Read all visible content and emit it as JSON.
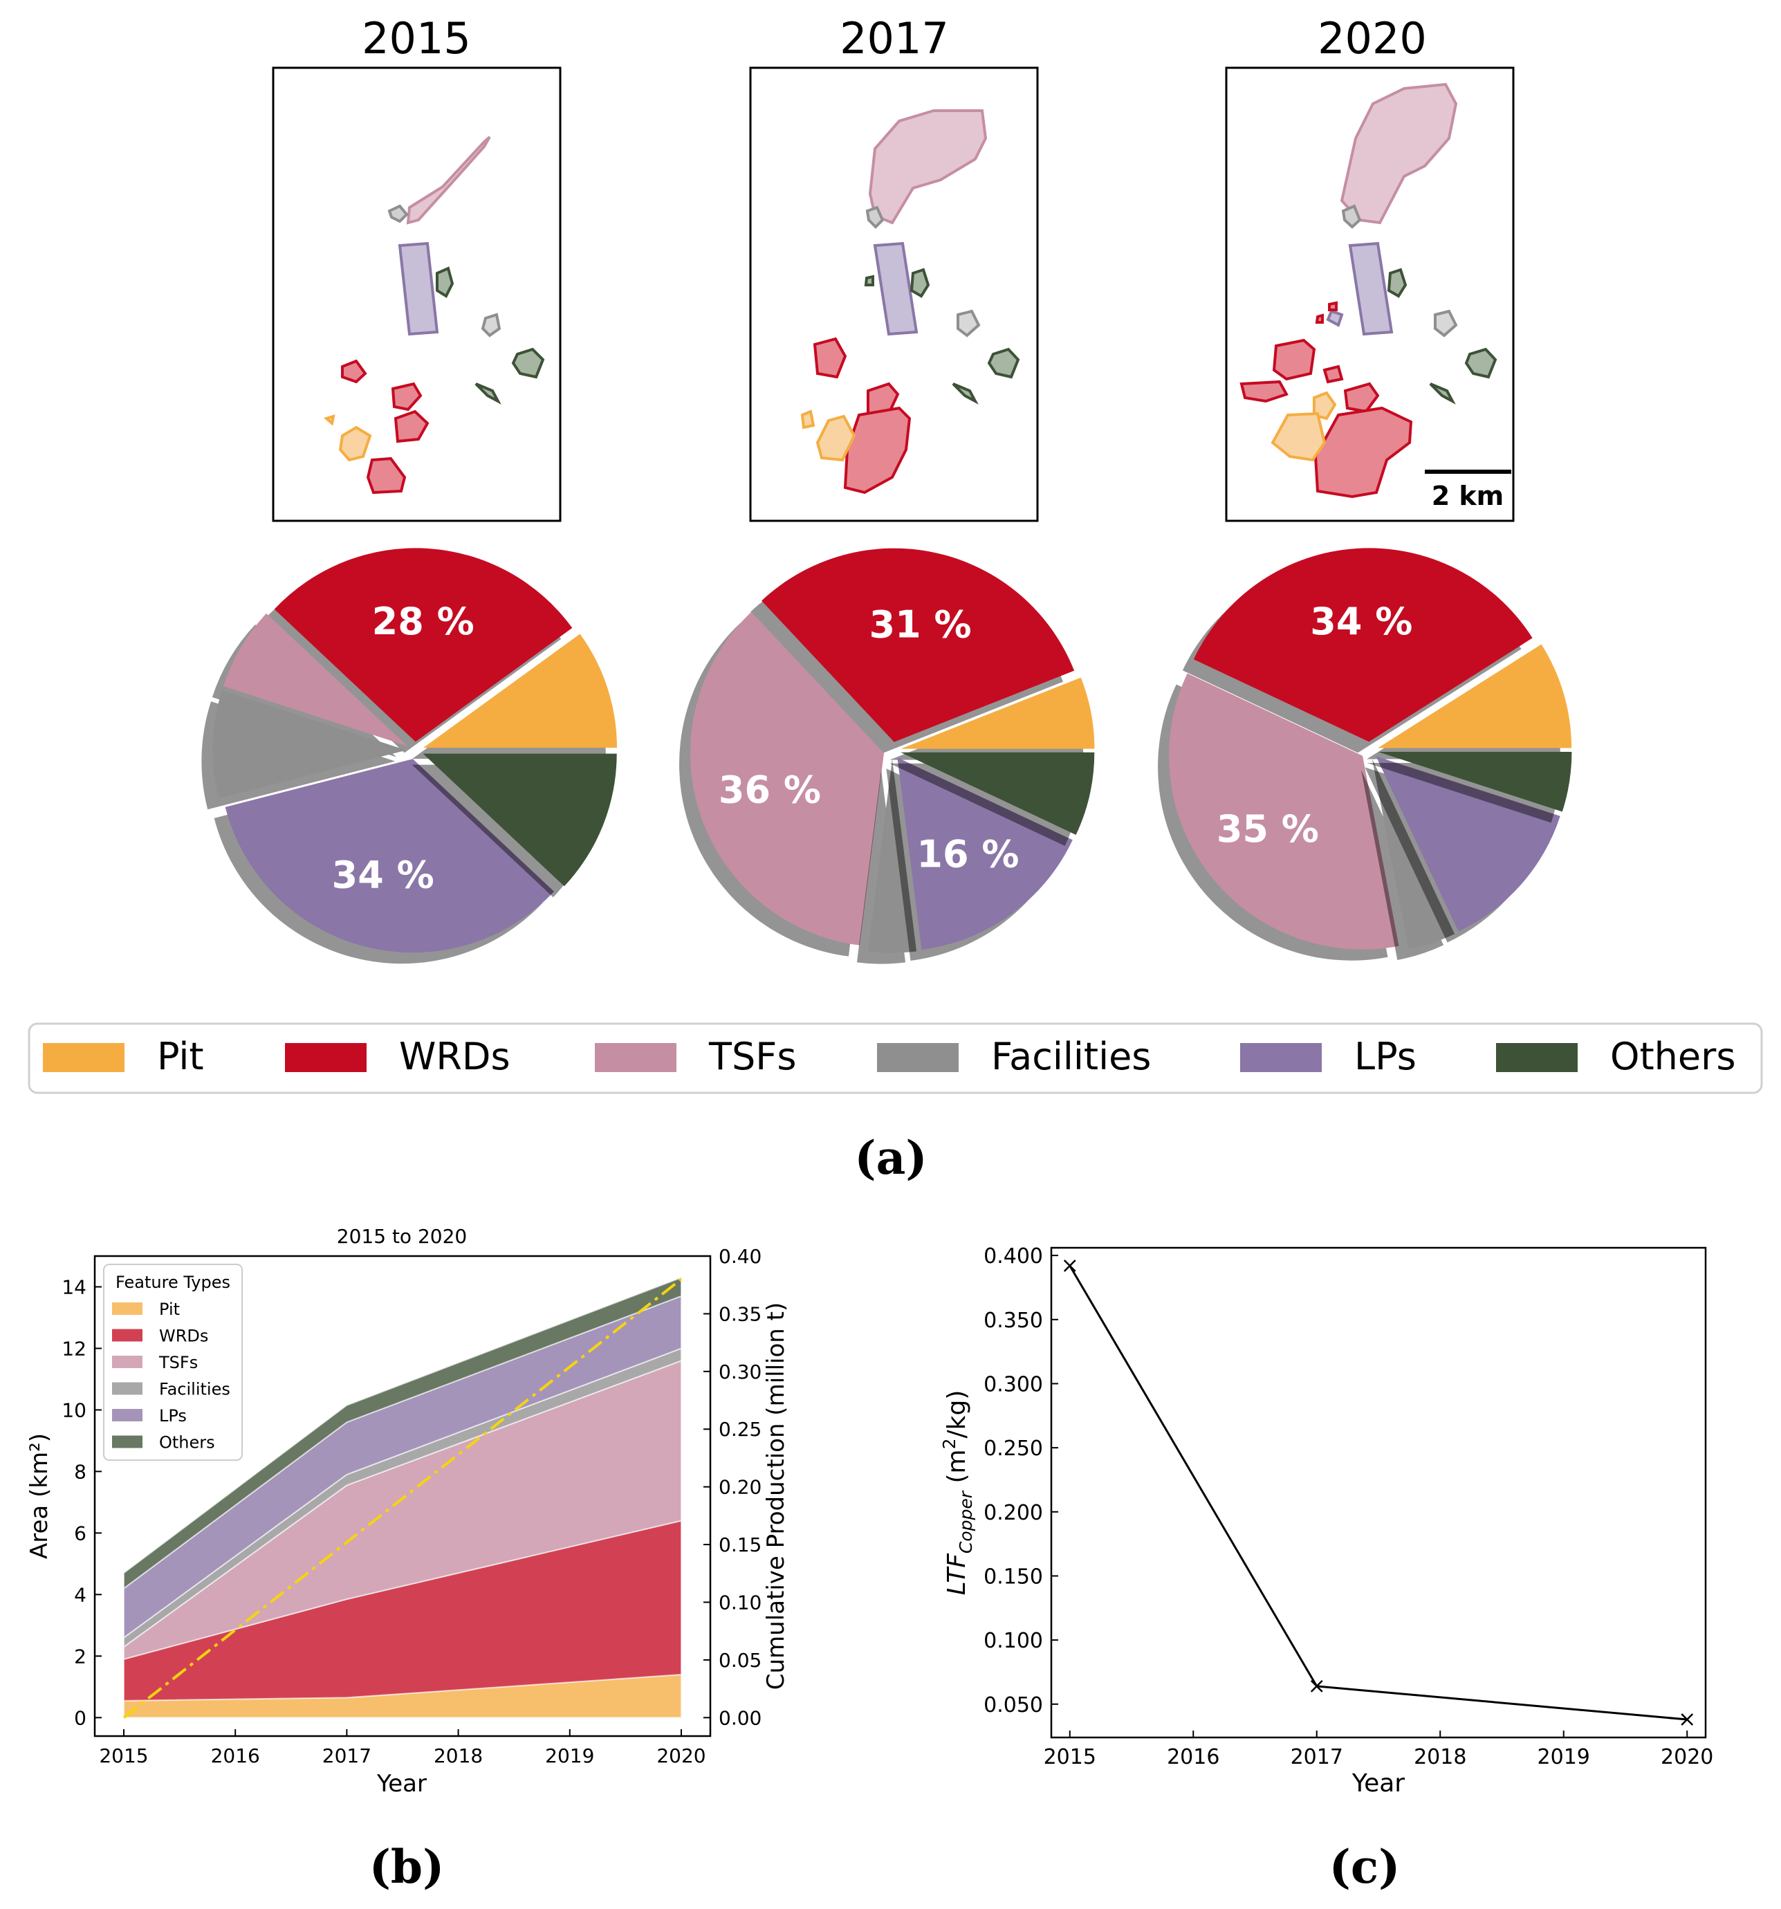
{
  "colors": {
    "Pit": "#f5ad42",
    "WRDs": "#c50b22",
    "TSFs": "#c68ea3",
    "Facilities": "#8f8f8f",
    "LPs": "#8a76a7",
    "Others": "#3d5237",
    "production_line": "#f5d40f"
  },
  "panel_labels": {
    "a": "(a)",
    "b": "(b)",
    "c": "(c)"
  },
  "scale_bar": "2 km",
  "legend_title": "Feature Types",
  "chart_data": [
    {
      "type": "pie",
      "panel": "a",
      "title": "2015",
      "categories": [
        "Pit",
        "WRDs",
        "TSFs",
        "Facilities",
        "LPs",
        "Others"
      ],
      "values": [
        10,
        28,
        7,
        9,
        34,
        12
      ],
      "labels": [
        "",
        "28 %",
        "",
        "",
        "34 %",
        ""
      ]
    },
    {
      "type": "pie",
      "panel": "a",
      "title": "2017",
      "categories": [
        "Pit",
        "WRDs",
        "TSFs",
        "Facilities",
        "LPs",
        "Others"
      ],
      "values": [
        6,
        31,
        36,
        4,
        16,
        7
      ],
      "labels": [
        "",
        "31 %",
        "36 %",
        "",
        "16 %",
        ""
      ]
    },
    {
      "type": "pie",
      "panel": "a",
      "title": "2020",
      "categories": [
        "Pit",
        "WRDs",
        "TSFs",
        "Facilities",
        "LPs",
        "Others"
      ],
      "values": [
        9,
        34,
        35,
        4,
        13,
        5
      ],
      "labels": [
        "",
        "34 %",
        "35 %",
        "",
        "",
        ""
      ]
    },
    {
      "type": "area",
      "panel": "b",
      "stacked": true,
      "title": "2015 to 2020",
      "x": [
        2015,
        2017,
        2020
      ],
      "series": [
        {
          "name": "Pit",
          "values": [
            0.55,
            0.65,
            1.4
          ]
        },
        {
          "name": "WRDs",
          "values": [
            1.35,
            3.2,
            5.0
          ]
        },
        {
          "name": "TSFs",
          "values": [
            0.4,
            3.7,
            5.2
          ]
        },
        {
          "name": "Facilities",
          "values": [
            0.3,
            0.35,
            0.4
          ]
        },
        {
          "name": "LPs",
          "values": [
            1.6,
            1.7,
            1.7
          ]
        },
        {
          "name": "Others",
          "values": [
            0.5,
            0.55,
            0.6
          ]
        }
      ],
      "secondary_series": {
        "name": "Cumulative Production",
        "x": [
          2015,
          2020
        ],
        "values": [
          0.0,
          0.38
        ]
      },
      "xlabel": "Year",
      "ylabel": "Area (km²)",
      "y2label": "Cumulative Production (million t)",
      "xlim": [
        2015,
        2020
      ],
      "ylim": [
        -0.6,
        15.0
      ],
      "y2lim": [
        -0.016,
        0.4
      ],
      "xticks": [
        "2015",
        "2016",
        "2017",
        "2018",
        "2019",
        "2020"
      ],
      "yticks": [
        "0",
        "2",
        "4",
        "6",
        "8",
        "10",
        "12",
        "14"
      ],
      "y2ticks": [
        "0.00",
        "0.05",
        "0.10",
        "0.15",
        "0.20",
        "0.25",
        "0.30",
        "0.35",
        "0.40"
      ],
      "legend": "top-left"
    },
    {
      "type": "line",
      "panel": "c",
      "x": [
        2015,
        2017,
        2020
      ],
      "values": [
        0.392,
        0.064,
        0.038
      ],
      "marker": "x",
      "xlabel": "Year",
      "ylabel": "LTFCopper (m2/kg)",
      "xlim": [
        2014.85,
        2020.15
      ],
      "ylim": [
        0.024,
        0.406
      ],
      "xticks": [
        "2015",
        "2016",
        "2017",
        "2018",
        "2019",
        "2020"
      ],
      "yticks": [
        "0.050",
        "0.100",
        "0.150",
        "0.200",
        "0.250",
        "0.300",
        "0.350",
        "0.400"
      ]
    }
  ]
}
